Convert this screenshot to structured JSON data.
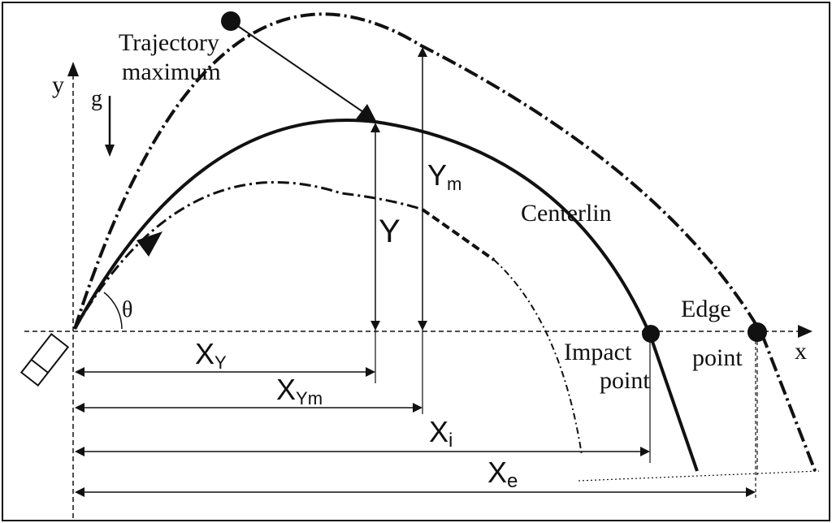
{
  "labels": {
    "trajectory_max_line1": "Trajectory",
    "trajectory_max_line2": "maximum",
    "y_axis": "y",
    "x_axis": "x",
    "gravity": "g",
    "theta": "θ",
    "y_height": "Y",
    "ym_main": "Y",
    "ym_sub": "m",
    "centerline": "Centerlin",
    "edge_line1": "Edge",
    "edge_line2": "point",
    "impact_line1": "Impact",
    "impact_line2": "point",
    "xy_main": "X",
    "xy_sub": "Y",
    "xym_main": "X",
    "xym_sub": "Ym",
    "xi_main": "X",
    "xi_sub": "i",
    "xe_main": "X",
    "xe_sub": "e"
  },
  "colors": {
    "ink": "#111111",
    "background": "#ffffff"
  }
}
